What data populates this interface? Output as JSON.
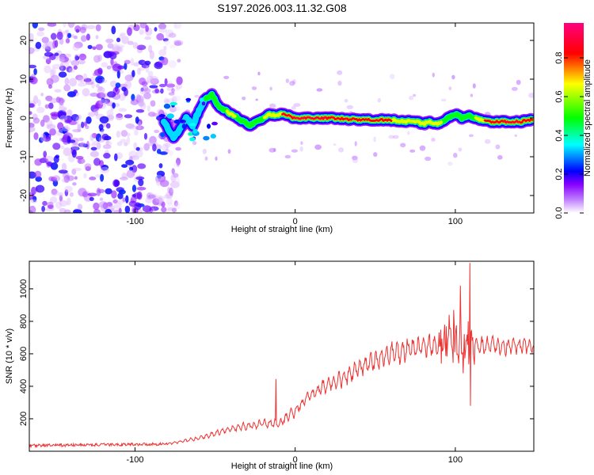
{
  "figure": {
    "title": "S197.2026.003.11.32.G08"
  },
  "chart_data": [
    {
      "type": "heatmap",
      "name": "spectrogram",
      "xlabel": "Height of straight line (km)",
      "ylabel": "Frequency (Hz)",
      "xlim": [
        -166,
        149
      ],
      "ylim": [
        -24.5,
        24.5
      ],
      "x_ticks": [
        -100,
        0,
        100
      ],
      "x_tick_labels": [
        "-100",
        "0",
        "100"
      ],
      "y_ticks": [
        -20,
        -10,
        0,
        10,
        20
      ],
      "y_tick_labels": [
        "-20",
        "-10",
        "0",
        "10",
        "20"
      ],
      "colorbar": {
        "label": "Normalized spectral amplitude",
        "range": [
          0,
          0.98
        ],
        "ticks": [
          0.0,
          0.2,
          0.4,
          0.6,
          0.8
        ],
        "tick_labels": [
          "0.0",
          "0.2",
          "0.4",
          "0.6",
          "0.8"
        ],
        "colormap": [
          "#ffffff",
          "#8800ff",
          "#0000ff",
          "#00ffff",
          "#00ff00",
          "#ffff00",
          "#ff0000",
          "#ff0080"
        ]
      },
      "noise_region_x": [
        -166,
        -80
      ],
      "ridge": {
        "x": [
          -82,
          -76,
          -72,
          -68,
          -64,
          -60,
          -56,
          -52,
          -48,
          -44,
          -40,
          -36,
          -32,
          -28,
          -24,
          -20,
          -16,
          -12,
          -8,
          -4,
          0,
          20,
          40,
          60,
          75,
          80,
          84,
          88,
          92,
          96,
          100,
          104,
          108,
          112,
          120,
          130,
          140,
          148
        ],
        "y": [
          -1,
          -5,
          -3,
          0,
          -2,
          2,
          5,
          6,
          3,
          2,
          1,
          0,
          -1,
          -2,
          -1,
          0,
          1,
          0.5,
          1,
          0.5,
          0,
          0,
          -0.5,
          -0.5,
          -1,
          -1.5,
          -1,
          -1.5,
          -1,
          0,
          1,
          0,
          0.5,
          0,
          -1,
          -1,
          -1,
          -0.5
        ],
        "amplitude": [
          0.3,
          0.35,
          0.4,
          0.3,
          0.35,
          0.4,
          0.45,
          0.5,
          0.55,
          0.6,
          0.65,
          0.6,
          0.55,
          0.5,
          0.55,
          0.6,
          0.7,
          0.75,
          0.8,
          0.85,
          0.95,
          0.9,
          0.85,
          0.8,
          0.75,
          0.7,
          0.75,
          0.7,
          0.6,
          0.55,
          0.55,
          0.5,
          0.55,
          0.6,
          0.85,
          0.9,
          0.9,
          0.85
        ]
      }
    },
    {
      "type": "line",
      "name": "snr",
      "xlabel": "Height of straight line (km)",
      "ylabel": "SNR (10 * v/v)",
      "xlim": [
        -166,
        149
      ],
      "ylim": [
        0,
        1170
      ],
      "x_ticks": [
        -100,
        0,
        100
      ],
      "x_tick_labels": [
        "-100",
        "0",
        "100"
      ],
      "y_ticks": [
        200,
        400,
        600,
        800,
        1000
      ],
      "y_tick_labels": [
        "200",
        "400",
        "600",
        "800",
        "1000"
      ],
      "series": [
        {
          "name": "SNR",
          "color": "#ee3333",
          "envelope_x": [
            -166,
            -120,
            -80,
            -60,
            -40,
            -20,
            -10,
            0,
            10,
            20,
            30,
            40,
            50,
            60,
            70,
            80,
            90,
            100,
            110,
            120,
            149
          ],
          "envelope_y": [
            35,
            40,
            45,
            80,
            140,
            170,
            170,
            250,
            350,
            410,
            450,
            510,
            560,
            600,
            625,
            645,
            660,
            670,
            660,
            650,
            650
          ],
          "spikes": [
            {
              "x": -12,
              "y": 445
            },
            {
              "x": 96,
              "y": 840
            },
            {
              "x": 99,
              "y": 870
            },
            {
              "x": 103,
              "y": 1020
            },
            {
              "x": 105,
              "y": 480
            },
            {
              "x": 108,
              "y": 800
            },
            {
              "x": 109,
              "y": 1160
            },
            {
              "x": 109.5,
              "y": 280
            }
          ]
        }
      ]
    }
  ]
}
